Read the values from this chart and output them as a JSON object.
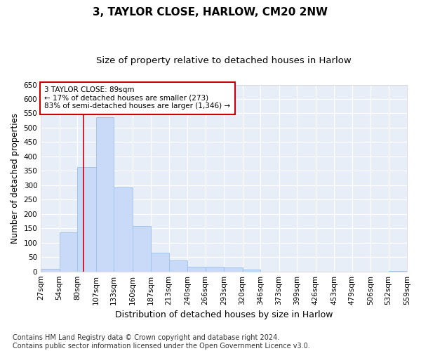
{
  "title": "3, TAYLOR CLOSE, HARLOW, CM20 2NW",
  "subtitle": "Size of property relative to detached houses in Harlow",
  "xlabel": "Distribution of detached houses by size in Harlow",
  "ylabel": "Number of detached properties",
  "bar_color": "#c9daf8",
  "bar_edge_color": "#9fc5e8",
  "vline_color": "#cc0000",
  "vline_x": 89,
  "bin_edges": [
    27,
    54,
    80,
    107,
    133,
    160,
    187,
    213,
    240,
    266,
    293,
    320,
    346,
    373,
    399,
    426,
    453,
    479,
    506,
    532,
    559
  ],
  "bar_heights": [
    8,
    135,
    362,
    537,
    292,
    157,
    65,
    38,
    17,
    16,
    14,
    7,
    0,
    0,
    0,
    0,
    0,
    0,
    0,
    1
  ],
  "ylim": [
    0,
    650
  ],
  "yticks": [
    0,
    50,
    100,
    150,
    200,
    250,
    300,
    350,
    400,
    450,
    500,
    550,
    600,
    650
  ],
  "annotation_text": "3 TAYLOR CLOSE: 89sqm\n← 17% of detached houses are smaller (273)\n83% of semi-detached houses are larger (1,346) →",
  "annotation_box_color": "#ffffff",
  "annotation_box_edge": "#cc0000",
  "footer": "Contains HM Land Registry data © Crown copyright and database right 2024.\nContains public sector information licensed under the Open Government Licence v3.0.",
  "bg_color": "#ffffff",
  "plot_bg_color": "#e8eef8",
  "grid_color": "#ffffff",
  "title_fontsize": 11,
  "subtitle_fontsize": 9.5,
  "xlabel_fontsize": 9,
  "ylabel_fontsize": 8.5,
  "footer_fontsize": 7,
  "tick_fontsize": 7.5
}
